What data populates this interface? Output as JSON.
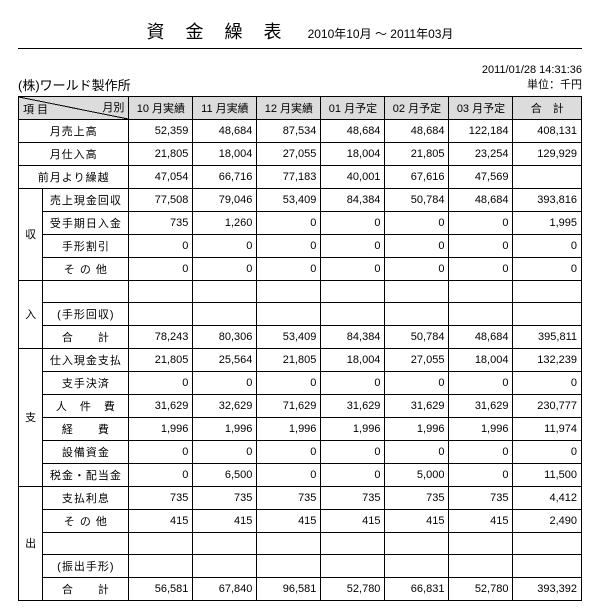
{
  "header": {
    "title": "資 金 繰 表",
    "period": "2010年10月 ～ 2011年03月",
    "company": "(株)ワールド製作所",
    "datetime": "2011/01/28  14:31:36",
    "unit": "単位：千円"
  },
  "columns": {
    "item_left": "項 目",
    "item_right": "月別",
    "months": [
      "10 月実績",
      "11 月実績",
      "12 月実績",
      "01 月予定",
      "02 月予定",
      "03 月予定"
    ],
    "total": "合　計"
  },
  "top_rows": [
    {
      "label": "月売上高",
      "v": [
        "52,359",
        "48,684",
        "87,534",
        "48,684",
        "48,684",
        "122,184",
        "408,131"
      ]
    },
    {
      "label": "月仕入高",
      "v": [
        "21,805",
        "18,004",
        "27,055",
        "18,004",
        "21,805",
        "23,254",
        "129,929"
      ]
    },
    {
      "label": "前月より繰越",
      "v": [
        "47,054",
        "66,716",
        "77,183",
        "40,001",
        "67,616",
        "47,569",
        ""
      ]
    }
  ],
  "income": {
    "group_labels": [
      "収",
      "入"
    ],
    "rows": [
      {
        "label": "売上現金回収",
        "v": [
          "77,508",
          "79,046",
          "53,409",
          "84,384",
          "50,784",
          "48,684",
          "393,816"
        ]
      },
      {
        "label": "受手期日入金",
        "v": [
          "735",
          "1,260",
          "0",
          "0",
          "0",
          "0",
          "1,995"
        ]
      },
      {
        "label": "手形割引",
        "v": [
          "0",
          "0",
          "0",
          "0",
          "0",
          "0",
          "0"
        ]
      },
      {
        "label": "そ の 他",
        "v": [
          "0",
          "0",
          "0",
          "0",
          "0",
          "0",
          "0"
        ]
      },
      {
        "label": "",
        "v": [
          "",
          "",
          "",
          "",
          "",
          "",
          ""
        ]
      },
      {
        "label": "(手形回収)",
        "v": [
          "",
          "",
          "",
          "",
          "",
          "",
          ""
        ]
      },
      {
        "label": "合　　計",
        "v": [
          "78,243",
          "80,306",
          "53,409",
          "84,384",
          "50,784",
          "48,684",
          "395,811"
        ]
      }
    ]
  },
  "expense": {
    "group_labels": [
      "支",
      "出"
    ],
    "rows": [
      {
        "label": "仕入現金支払",
        "v": [
          "21,805",
          "25,564",
          "21,805",
          "18,004",
          "27,055",
          "18,004",
          "132,239"
        ]
      },
      {
        "label": "支手決済",
        "v": [
          "0",
          "0",
          "0",
          "0",
          "0",
          "0",
          "0"
        ]
      },
      {
        "label": "人　件　費",
        "v": [
          "31,629",
          "32,629",
          "71,629",
          "31,629",
          "31,629",
          "31,629",
          "230,777"
        ]
      },
      {
        "label": "経　　費",
        "v": [
          "1,996",
          "1,996",
          "1,996",
          "1,996",
          "1,996",
          "1,996",
          "11,974"
        ]
      },
      {
        "label": "設備資金",
        "v": [
          "0",
          "0",
          "0",
          "0",
          "0",
          "0",
          "0"
        ]
      },
      {
        "label": "税金・配当金",
        "v": [
          "0",
          "6,500",
          "0",
          "0",
          "5,000",
          "0",
          "11,500"
        ]
      },
      {
        "label": "支払利息",
        "v": [
          "735",
          "735",
          "735",
          "735",
          "735",
          "735",
          "4,412"
        ]
      },
      {
        "label": "そ の 他",
        "v": [
          "415",
          "415",
          "415",
          "415",
          "415",
          "415",
          "2,490"
        ]
      },
      {
        "label": "",
        "v": [
          "",
          "",
          "",
          "",
          "",
          "",
          ""
        ]
      },
      {
        "label": "(振出手形)",
        "v": [
          "",
          "",
          "",
          "",
          "",
          "",
          ""
        ]
      },
      {
        "label": "合　　計",
        "v": [
          "56,581",
          "67,840",
          "96,581",
          "52,780",
          "66,831",
          "52,780",
          "393,392"
        ]
      }
    ]
  }
}
